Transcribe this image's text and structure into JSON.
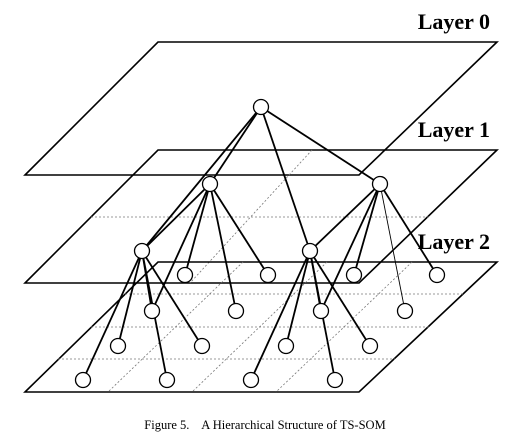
{
  "layers": {
    "layer0_label": "Layer 0",
    "layer1_label": "Layer 1",
    "layer2_label": "Layer 2"
  },
  "caption": "Figure 5.    A Hierarchical Structure of TS-SOM"
}
